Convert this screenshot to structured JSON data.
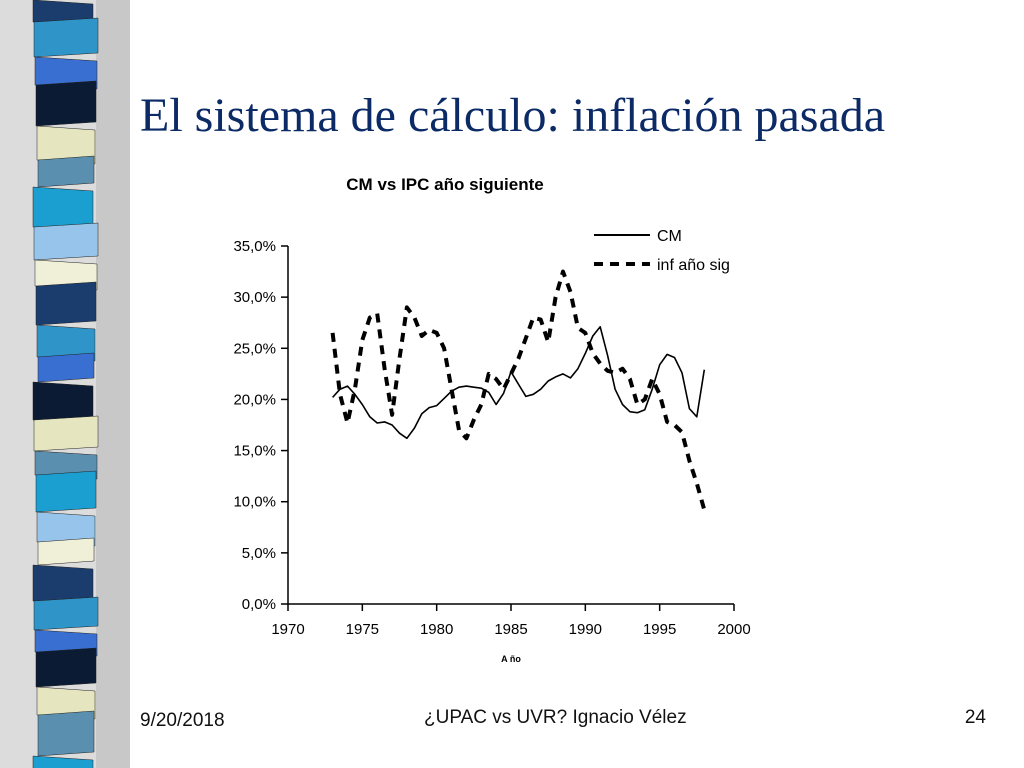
{
  "slide": {
    "title": "El sistema de cálculo: inflación pasada",
    "footer_date": "9/20/2018",
    "footer_center": "¿UPAC vs UVR? Ignacio Vélez",
    "page_number": "24"
  },
  "decor": {
    "band_colors": [
      "#1b3d6e",
      "#2f95c8",
      "#3a6fd2",
      "#0b1b33",
      "#e5e6bf",
      "#5a8fb0",
      "#1a9fd0",
      "#96c4ea",
      "#f0f0d8"
    ]
  },
  "chart_data": {
    "type": "line",
    "title": "CM vs IPC año siguiente",
    "xlabel": "A ño",
    "ylabel": "",
    "xlim": [
      1970,
      2000
    ],
    "ylim": [
      0,
      0.35
    ],
    "x_ticks": [
      "1970",
      "1975",
      "1980",
      "1985",
      "1990",
      "1995",
      "2000"
    ],
    "y_ticks": [
      "0,0%",
      "5,0%",
      "10,0%",
      "15,0%",
      "20,0%",
      "25,0%",
      "30,0%",
      "35,0%"
    ],
    "legend_position": "top-right",
    "series": [
      {
        "name": "CM",
        "style": "solid",
        "color": "#000000",
        "x": [
          1973,
          1973.5,
          1974,
          1974.5,
          1975,
          1975.5,
          1976,
          1976.5,
          1977,
          1977.5,
          1978,
          1978.5,
          1979,
          1979.5,
          1980,
          1980.5,
          1981,
          1981.5,
          1982,
          1982.5,
          1983,
          1983.5,
          1984,
          1984.5,
          1985,
          1985.5,
          1986,
          1986.5,
          1987,
          1987.5,
          1988,
          1988.5,
          1989,
          1989.5,
          1990,
          1990.5,
          1991,
          1991.5,
          1992,
          1992.5,
          1993,
          1993.5,
          1994,
          1994.5,
          1995,
          1995.5,
          1996,
          1996.5,
          1997,
          1997.5,
          1998
        ],
        "y": [
          0.202,
          0.21,
          0.213,
          0.205,
          0.195,
          0.183,
          0.177,
          0.178,
          0.175,
          0.167,
          0.162,
          0.172,
          0.186,
          0.192,
          0.194,
          0.201,
          0.208,
          0.212,
          0.213,
          0.212,
          0.211,
          0.207,
          0.195,
          0.206,
          0.227,
          0.215,
          0.203,
          0.205,
          0.21,
          0.218,
          0.222,
          0.225,
          0.221,
          0.23,
          0.245,
          0.262,
          0.271,
          0.243,
          0.21,
          0.195,
          0.188,
          0.187,
          0.19,
          0.21,
          0.234,
          0.244,
          0.241,
          0.226,
          0.191,
          0.183,
          0.229
        ]
      },
      {
        "name": "inf año sig",
        "style": "dashed",
        "color": "#000000",
        "x": [
          1973,
          1973.5,
          1974,
          1974.5,
          1975,
          1975.5,
          1976,
          1976.5,
          1977,
          1977.5,
          1978,
          1978.5,
          1979,
          1979.5,
          1980,
          1980.5,
          1981,
          1981.5,
          1982,
          1982.5,
          1983,
          1983.5,
          1984,
          1984.5,
          1985,
          1985.5,
          1986,
          1986.5,
          1987,
          1987.5,
          1988,
          1988.5,
          1989,
          1989.5,
          1990,
          1990.5,
          1991,
          1991.5,
          1992,
          1992.5,
          1993,
          1993.5,
          1994,
          1994.5,
          1995,
          1995.5,
          1996,
          1996.5,
          1997,
          1997.5,
          1998
        ],
        "y": [
          0.265,
          0.205,
          0.177,
          0.21,
          0.258,
          0.28,
          0.284,
          0.23,
          0.185,
          0.24,
          0.29,
          0.28,
          0.262,
          0.268,
          0.265,
          0.25,
          0.21,
          0.17,
          0.162,
          0.18,
          0.195,
          0.225,
          0.22,
          0.21,
          0.225,
          0.24,
          0.26,
          0.28,
          0.278,
          0.256,
          0.3,
          0.325,
          0.305,
          0.27,
          0.265,
          0.245,
          0.235,
          0.228,
          0.226,
          0.23,
          0.22,
          0.195,
          0.2,
          0.22,
          0.205,
          0.178,
          0.175,
          0.168,
          0.14,
          0.118,
          0.092
        ]
      }
    ]
  }
}
